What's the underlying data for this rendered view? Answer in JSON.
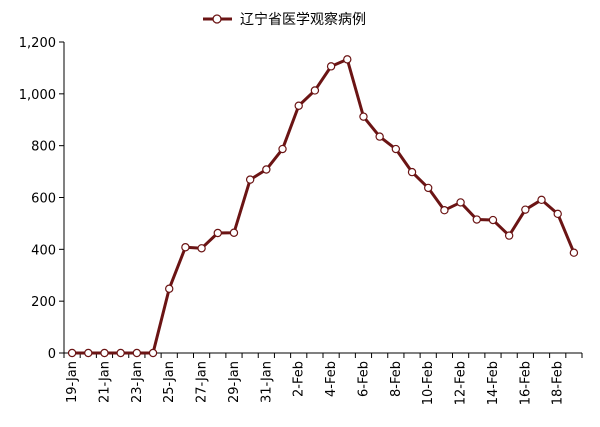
{
  "chart_data": {
    "type": "line",
    "title": "",
    "xlabel": "",
    "ylabel": "",
    "ylim": [
      0,
      1200
    ],
    "yticks": [
      0,
      200,
      400,
      600,
      800,
      1000,
      1200
    ],
    "ytick_labels": [
      "0",
      "200",
      "400",
      "600",
      "800",
      "1,000",
      "1,200"
    ],
    "grid": false,
    "legend_position": "top-center",
    "color": "#6b1414",
    "marker_fill": "#ffffff",
    "categories": [
      "19-Jan",
      "20-Jan",
      "21-Jan",
      "22-Jan",
      "23-Jan",
      "24-Jan",
      "25-Jan",
      "26-Jan",
      "27-Jan",
      "28-Jan",
      "29-Jan",
      "30-Jan",
      "31-Jan",
      "1-Feb",
      "2-Feb",
      "3-Feb",
      "4-Feb",
      "5-Feb",
      "6-Feb",
      "7-Feb",
      "8-Feb",
      "9-Feb",
      "10-Feb",
      "11-Feb",
      "12-Feb",
      "13-Feb",
      "14-Feb",
      "15-Feb",
      "16-Feb",
      "17-Feb",
      "18-Feb",
      "19-Feb"
    ],
    "tick_labels": [
      "19-Jan",
      "21-Jan",
      "23-Jan",
      "25-Jan",
      "27-Jan",
      "29-Jan",
      "31-Jan",
      "2-Feb",
      "4-Feb",
      "6-Feb",
      "8-Feb",
      "10-Feb",
      "12-Feb",
      "14-Feb",
      "16-Feb",
      "18-Feb"
    ],
    "series": [
      {
        "name": "辽宁省医学观察病例",
        "values": [
          0,
          0,
          0,
          0,
          0,
          0,
          248,
          408,
          404,
          463,
          464,
          669,
          708,
          787,
          954,
          1013,
          1106,
          1133,
          912,
          835,
          787,
          698,
          637,
          551,
          581,
          515,
          513,
          453,
          553,
          591,
          537,
          387
        ]
      }
    ]
  }
}
